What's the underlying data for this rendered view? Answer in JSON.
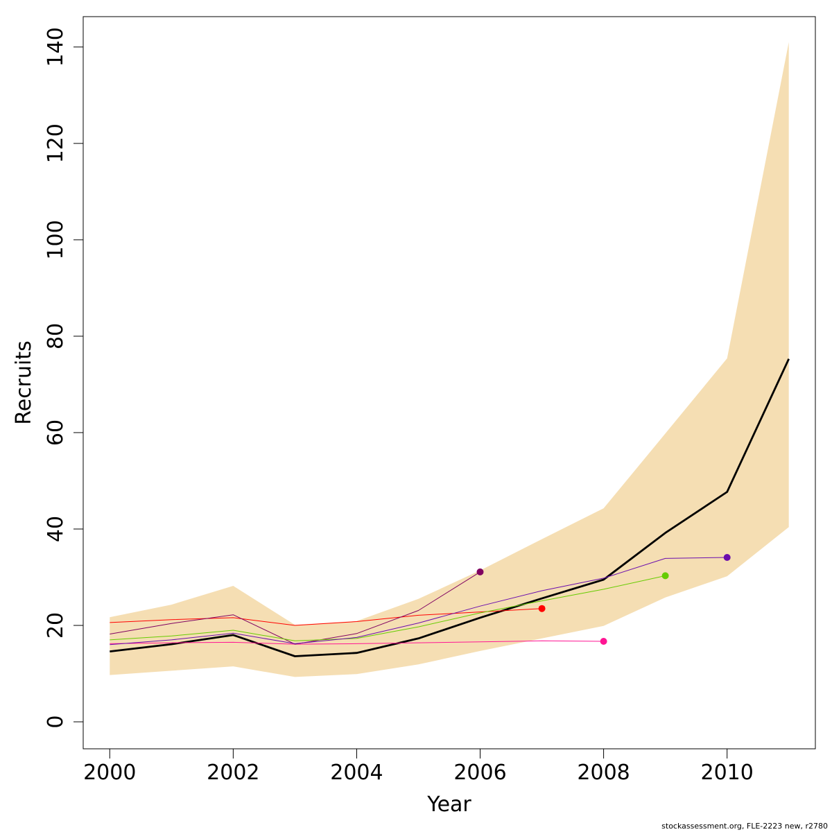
{
  "chart_data": {
    "type": "line",
    "xlabel": "Year",
    "ylabel": "Recruits",
    "xlim": [
      1999.57,
      2011.43
    ],
    "ylim": [
      -5.6,
      146.3
    ],
    "x_ticks": [
      2000,
      2002,
      2004,
      2006,
      2008,
      2010
    ],
    "y_ticks": [
      0,
      20,
      40,
      60,
      80,
      100,
      120,
      140
    ],
    "grid": false,
    "legend": "none",
    "band": {
      "color": "#f5deb3",
      "x": [
        2000,
        2001,
        2002,
        2003,
        2004,
        2005,
        2006,
        2007,
        2008,
        2009,
        2010,
        2011
      ],
      "lower": [
        9.7,
        10.6,
        11.5,
        9.3,
        9.9,
        11.9,
        14.7,
        17.3,
        19.9,
        25.8,
        30.2,
        40.4
      ],
      "upper": [
        21.7,
        24.3,
        28.2,
        20.1,
        20.9,
        25.5,
        31.4,
        37.9,
        44.3,
        59.8,
        75.4,
        141.0
      ]
    },
    "series": [
      {
        "color": "#000000",
        "width": 2.8,
        "end_point": false,
        "x": [
          2000,
          2001,
          2002,
          2003,
          2004,
          2005,
          2006,
          2007,
          2008,
          2009,
          2010,
          2011
        ],
        "values": [
          14.6,
          16.1,
          18.0,
          13.6,
          14.3,
          17.3,
          21.6,
          25.6,
          29.5,
          39.2,
          47.7,
          75.3
        ]
      },
      {
        "color": "#ff0000",
        "width": 1,
        "end_point": true,
        "x": [
          2000,
          2001,
          2002,
          2003,
          2004,
          2005,
          2006,
          2007
        ],
        "values": [
          20.6,
          21.2,
          21.6,
          20.0,
          20.8,
          22.1,
          22.8,
          23.5
        ]
      },
      {
        "color": "#ff1493",
        "width": 1,
        "end_point": true,
        "x": [
          2000,
          2001,
          2002,
          2003,
          2004,
          2005,
          2006,
          2007,
          2008
        ],
        "values": [
          16.2,
          16.4,
          16.5,
          16.1,
          16.2,
          16.4,
          16.6,
          16.8,
          16.7
        ]
      },
      {
        "color": "#800060",
        "width": 1,
        "end_point": true,
        "x": [
          2000,
          2001,
          2002,
          2003,
          2004,
          2005,
          2006
        ],
        "values": [
          18.2,
          20.4,
          22.2,
          16.1,
          18.3,
          23.1,
          31.1
        ]
      },
      {
        "color": "#66cc00",
        "width": 1,
        "end_point": true,
        "x": [
          2000,
          2001,
          2002,
          2003,
          2004,
          2005,
          2006,
          2007,
          2008,
          2009
        ],
        "values": [
          17.0,
          17.8,
          19.0,
          16.8,
          17.3,
          19.7,
          22.6,
          25.1,
          27.5,
          30.3
        ]
      },
      {
        "color": "#6a0dad",
        "width": 1,
        "end_point": true,
        "x": [
          2000,
          2001,
          2002,
          2003,
          2004,
          2005,
          2006,
          2007,
          2008,
          2009,
          2010
        ],
        "values": [
          16.0,
          17.0,
          18.4,
          16.2,
          17.5,
          20.5,
          24.0,
          27.2,
          29.8,
          33.9,
          34.1
        ]
      }
    ]
  },
  "footer": "stockassessment.org, FLE-2223 new, r2780"
}
